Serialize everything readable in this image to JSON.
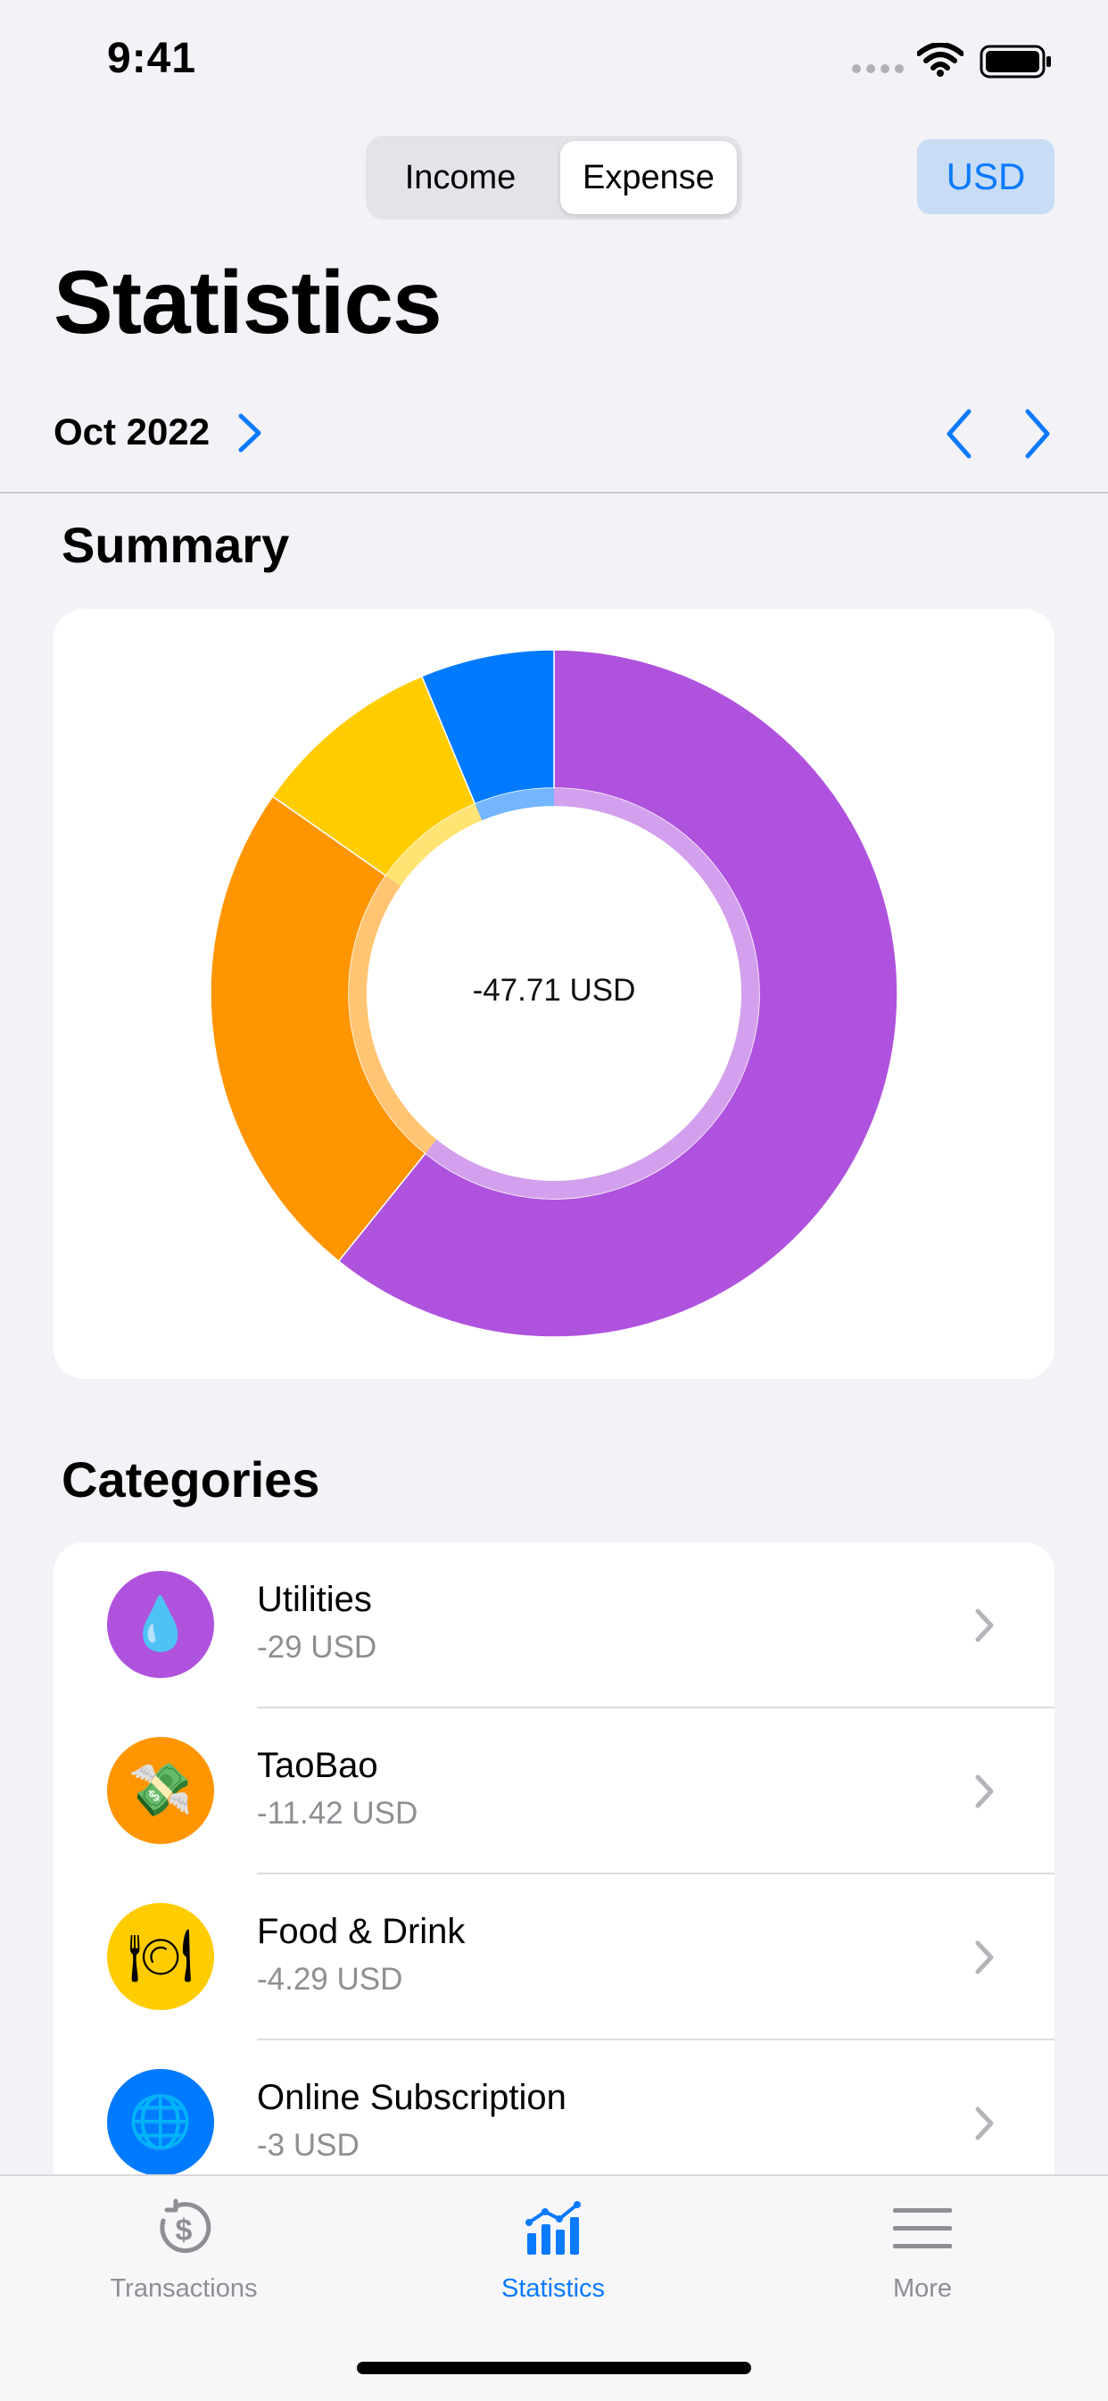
{
  "status_bar": {
    "time": "9:41"
  },
  "header": {
    "segments": [
      "Income",
      "Expense"
    ],
    "selected_segment": "Expense",
    "currency_button": "USD",
    "title": "Statistics",
    "period": "Oct 2022"
  },
  "summary": {
    "title": "Summary",
    "total_label": "-47.71 USD"
  },
  "chart_data": {
    "type": "pie",
    "categories": [
      "Utilities",
      "TaoBao",
      "Food & Drink",
      "Online Subscription"
    ],
    "values": [
      29,
      11.42,
      4.29,
      3
    ],
    "colors": [
      "#af52de",
      "#ff9500",
      "#ffcc00",
      "#007aff"
    ],
    "total": -47.71,
    "unit": "USD"
  },
  "categories": {
    "title": "Categories",
    "items": [
      {
        "name": "Utilities",
        "amount": "-29 USD",
        "color": "#af52de",
        "icon": "water-drop-icon",
        "glyph": "💧"
      },
      {
        "name": "TaoBao",
        "amount": "-11.42 USD",
        "color": "#ff9500",
        "icon": "money-with-wings-icon",
        "glyph": "💸"
      },
      {
        "name": "Food & Drink",
        "amount": "-4.29 USD",
        "color": "#ffcc00",
        "icon": "plate-cutlery-icon",
        "glyph": "🍽"
      },
      {
        "name": "Online Subscription",
        "amount": "-3 USD",
        "color": "#007aff",
        "icon": "globe-icon",
        "glyph": "🌐"
      }
    ]
  },
  "tab_bar": {
    "items": [
      {
        "label": "Transactions",
        "icon": "clock-dollar-icon"
      },
      {
        "label": "Statistics",
        "icon": "bar-chart-icon"
      },
      {
        "label": "More",
        "icon": "menu-lines-icon"
      }
    ],
    "active": "Statistics"
  },
  "colors": {
    "accent": "#0a7aff",
    "background": "#f2f2f7"
  }
}
